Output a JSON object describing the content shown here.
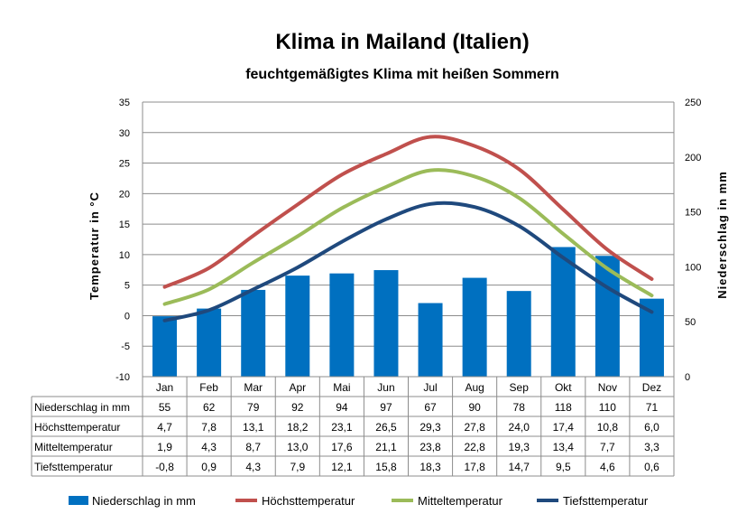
{
  "chart_data": {
    "type": "bar+line",
    "title": "Klima in Mailand (Italien)",
    "subtitle": "feuchtgemäßigtes Klima mit heißen Sommern",
    "categories": [
      "Jan",
      "Feb",
      "Mar",
      "Apr",
      "Mai",
      "Jun",
      "Jul",
      "Aug",
      "Sep",
      "Okt",
      "Nov",
      "Dez"
    ],
    "y_left": {
      "label": "Temperatur  in  °C",
      "range": [
        -10,
        35
      ],
      "ticks": [
        -10,
        -5,
        0,
        5,
        10,
        15,
        20,
        25,
        30,
        35
      ]
    },
    "y_right": {
      "label": "Niederschlag  in  mm",
      "range": [
        0,
        250
      ],
      "ticks": [
        0,
        50,
        100,
        150,
        200,
        250
      ]
    },
    "grid": true,
    "legend_position": "bottom",
    "bars": {
      "name": "Niederschlag in mm",
      "axis": "right",
      "color": "#0070C0",
      "values": [
        55,
        62,
        79,
        92,
        94,
        97,
        67,
        90,
        78,
        118,
        110,
        71
      ],
      "labels": [
        "55",
        "62",
        "79",
        "92",
        "94",
        "97",
        "67",
        "90",
        "78",
        "118",
        "110",
        "71"
      ]
    },
    "series": [
      {
        "name": "Höchsttemperatur",
        "axis": "left",
        "color": "#C0504D",
        "values": [
          4.7,
          7.8,
          13.1,
          18.2,
          23.1,
          26.5,
          29.3,
          27.8,
          24.0,
          17.4,
          10.8,
          6.0
        ],
        "labels": [
          "4,7",
          "7,8",
          "13,1",
          "18,2",
          "23,1",
          "26,5",
          "29,3",
          "27,8",
          "24,0",
          "17,4",
          "10,8",
          "6,0"
        ]
      },
      {
        "name": "Mitteltemperatur",
        "axis": "left",
        "color": "#9BBB59",
        "values": [
          1.9,
          4.3,
          8.7,
          13.0,
          17.6,
          21.1,
          23.8,
          22.8,
          19.3,
          13.4,
          7.7,
          3.3
        ],
        "labels": [
          "1,9",
          "4,3",
          "8,7",
          "13,0",
          "17,6",
          "21,1",
          "23,8",
          "22,8",
          "19,3",
          "13,4",
          "7,7",
          "3,3"
        ]
      },
      {
        "name": "Tiefsttemperatur",
        "axis": "left",
        "color": "#1F497D",
        "values": [
          -0.8,
          0.9,
          4.3,
          7.9,
          12.1,
          15.8,
          18.3,
          17.8,
          14.7,
          9.5,
          4.6,
          0.6
        ],
        "labels": [
          "-0,8",
          "0,9",
          "4,3",
          "7,9",
          "12,1",
          "15,8",
          "18,3",
          "17,8",
          "14,7",
          "9,5",
          "4,6",
          "0,6"
        ]
      }
    ]
  }
}
